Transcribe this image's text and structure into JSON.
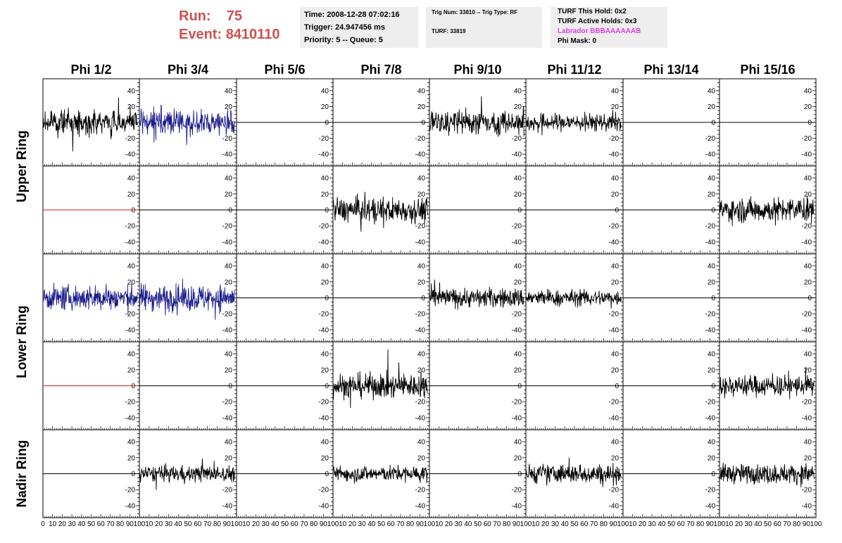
{
  "header": {
    "run_label": "Run:",
    "run_value": "75",
    "event_label": "Event:",
    "event_value": "8410110",
    "time": "Time: 2008-12-28 07:02:16",
    "trigger": "Trigger: 24.947456 ms",
    "priority": "Priority: 5 -- Queue: 5",
    "trig_num": "Trig Num: 33810 -- Trig Type: RF",
    "turf": "TURF: 33819",
    "turf_this_hold": "TURF This Hold: 0x2",
    "turf_active_holds": "TURF Active Holds: 0x3",
    "labrador": "Labrador BBBAAAAAAB",
    "phi_mask": "Phi Mask: 0"
  },
  "colors": {
    "run_text": "#d05050",
    "labrador_text": "#e23ee2",
    "trace_black": "#000000",
    "trace_blue": "#1a1a8c",
    "trace_red": "#cc2222"
  },
  "chart_data": {
    "type": "line",
    "columns": [
      "Phi 1/2",
      "Phi 3/4",
      "Phi 5/6",
      "Phi 7/8",
      "Phi 9/10",
      "Phi 11/12",
      "Phi 13/14",
      "Phi 15/16"
    ],
    "rows": [
      "Upper Ring",
      "Lower Ring",
      "Nadir Ring"
    ],
    "xlim": [
      0,
      100
    ],
    "ylim": [
      -55,
      55
    ],
    "x_ticks": [
      0,
      10,
      20,
      30,
      40,
      50,
      60,
      70,
      80,
      90,
      100
    ],
    "y_ticks": [
      40,
      20,
      0,
      -20,
      -40
    ],
    "grid": false,
    "panels": [
      [
        {
          "color": "black",
          "amp": 13
        },
        {
          "color": "blue",
          "amp": 15
        },
        {
          "color": "black",
          "amp": 0
        },
        {
          "color": "black",
          "amp": 0
        },
        {
          "color": "black",
          "amp": 14
        },
        {
          "color": "black",
          "amp": 10
        },
        {
          "color": "black",
          "amp": 0
        },
        {
          "color": "black",
          "amp": 0
        }
      ],
      [
        {
          "color": "red",
          "amp": 0
        },
        {
          "color": "black",
          "amp": 0
        },
        {
          "color": "black",
          "amp": 0
        },
        {
          "color": "black",
          "amp": 14
        },
        {
          "color": "black",
          "amp": 0
        },
        {
          "color": "black",
          "amp": 0
        },
        {
          "color": "black",
          "amp": 0
        },
        {
          "color": "black",
          "amp": 14
        }
      ],
      [
        {
          "color": "blue",
          "amp": 14
        },
        {
          "color": "blue",
          "amp": 15
        },
        {
          "color": "black",
          "amp": 0
        },
        {
          "color": "black",
          "amp": 0
        },
        {
          "color": "black",
          "amp": 11
        },
        {
          "color": "black",
          "amp": 9
        },
        {
          "color": "black",
          "amp": 0
        },
        {
          "color": "black",
          "amp": 0
        }
      ],
      [
        {
          "color": "red",
          "amp": 0
        },
        {
          "color": "black",
          "amp": 0
        },
        {
          "color": "black",
          "amp": 0
        },
        {
          "color": "black",
          "amp": 14
        },
        {
          "color": "black",
          "amp": 0
        },
        {
          "color": "black",
          "amp": 0
        },
        {
          "color": "black",
          "amp": 0
        },
        {
          "color": "black",
          "amp": 12
        }
      ],
      [
        {
          "color": "black",
          "amp": 0
        },
        {
          "color": "black",
          "amp": 9
        },
        {
          "color": "black",
          "amp": 0
        },
        {
          "color": "black",
          "amp": 9
        },
        {
          "color": "black",
          "amp": 0
        },
        {
          "color": "black",
          "amp": 11
        },
        {
          "color": "black",
          "amp": 0
        },
        {
          "color": "black",
          "amp": 11
        }
      ]
    ]
  }
}
